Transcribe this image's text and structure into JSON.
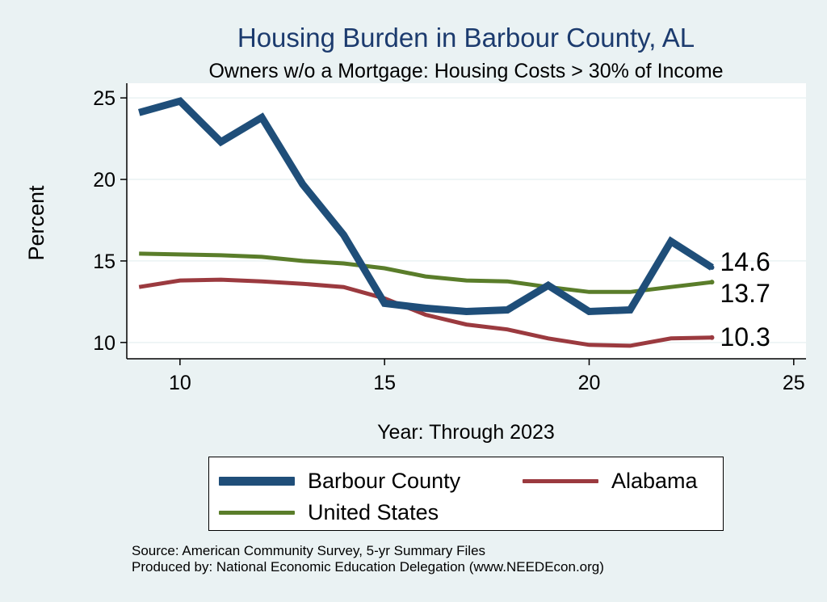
{
  "chart_data": {
    "type": "line",
    "title": "Housing Burden in Barbour County, AL",
    "subtitle": "Owners w/o a Mortgage: Housing Costs > 30% of Income",
    "xlabel": "Year: Through 2023",
    "ylabel": "Percent",
    "xlim": [
      8.7,
      25.3
    ],
    "ylim": [
      9.0,
      25.9
    ],
    "xticks": [
      "10",
      "15",
      "20",
      "25"
    ],
    "yticks": [
      "10",
      "15",
      "20",
      "25"
    ],
    "x": [
      9,
      10,
      11,
      12,
      13,
      14,
      15,
      16,
      17,
      18,
      19,
      20,
      21,
      22,
      23
    ],
    "series": [
      {
        "name": "Barbour County",
        "color": "#1f4e79",
        "values": [
          24.1,
          24.8,
          22.3,
          23.8,
          19.7,
          16.6,
          12.4,
          12.1,
          11.9,
          12.0,
          13.5,
          11.9,
          12.0,
          16.2,
          14.6
        ],
        "end_label": "14.6"
      },
      {
        "name": "Alabama",
        "color": "#9b3a3f",
        "values": [
          13.4,
          13.8,
          13.85,
          13.75,
          13.6,
          13.4,
          12.7,
          11.7,
          11.1,
          10.8,
          10.25,
          9.85,
          9.8,
          10.25,
          10.3
        ],
        "end_label": "10.3"
      },
      {
        "name": "United States",
        "color": "#5a7d2a",
        "values": [
          15.45,
          15.4,
          15.35,
          15.25,
          15.0,
          14.85,
          14.55,
          14.05,
          13.8,
          13.75,
          13.4,
          13.1,
          13.1,
          13.4,
          13.7
        ],
        "end_label": "13.7"
      }
    ],
    "legend_position": "bottom",
    "grid": true
  },
  "footnote": {
    "source": "Source: American Community Survey, 5-yr Summary Files",
    "produced": "Produced by: National Economic Education Delegation (www.NEEDEcon.org)"
  }
}
